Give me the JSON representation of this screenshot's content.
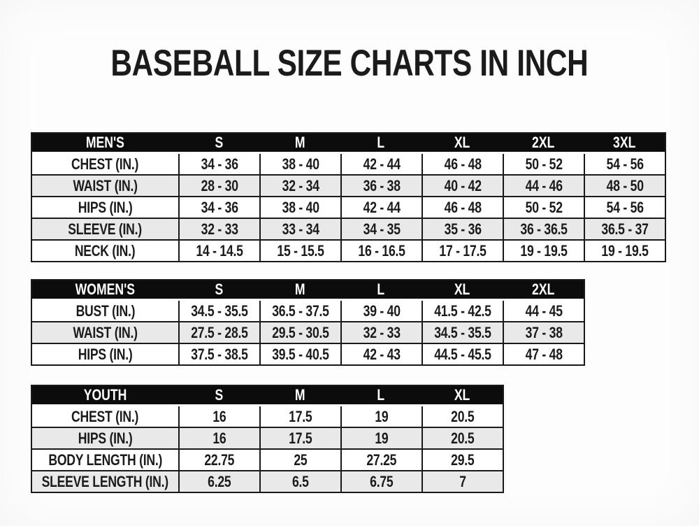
{
  "title": "BASEBALL SIZE CHARTS IN INCH",
  "colors": {
    "page_bg": "#fdfdfd",
    "header_bg": "#0c0c0c",
    "header_text": "#ffffff",
    "stripe": "#e9e9e9",
    "border": "#1a1a1a",
    "text": "#1b1b1b"
  },
  "chart_data": [
    {
      "type": "table",
      "name": "MEN'S",
      "columns": [
        "S",
        "M",
        "L",
        "XL",
        "2XL",
        "3XL"
      ],
      "rows": [
        {
          "label": "CHEST (IN.)",
          "values": [
            "34 - 36",
            "38 - 40",
            "42 - 44",
            "46 - 48",
            "50 - 52",
            "54 - 56"
          ]
        },
        {
          "label": "WAIST (IN.)",
          "values": [
            "28 - 30",
            "32 - 34",
            "36 - 38",
            "40 - 42",
            "44 - 46",
            "48 - 50"
          ]
        },
        {
          "label": "HIPS (IN.)",
          "values": [
            "34 - 36",
            "38 - 40",
            "42 - 44",
            "46 - 48",
            "50 - 52",
            "54 - 56"
          ]
        },
        {
          "label": "SLEEVE (IN.)",
          "values": [
            "32 - 33",
            "33 - 34",
            "34 - 35",
            "35 - 36",
            "36 - 36.5",
            "36.5 - 37"
          ]
        },
        {
          "label": "NECK (IN.)",
          "values": [
            "14 - 14.5",
            "15 - 15.5",
            "16 - 16.5",
            "17 - 17.5",
            "19 - 19.5",
            "19 - 19.5"
          ]
        }
      ]
    },
    {
      "type": "table",
      "name": "WOMEN'S",
      "columns": [
        "S",
        "M",
        "L",
        "XL",
        "2XL"
      ],
      "rows": [
        {
          "label": "BUST (IN.)",
          "values": [
            "34.5 - 35.5",
            "36.5 - 37.5",
            "39 - 40",
            "41.5 - 42.5",
            "44 - 45"
          ]
        },
        {
          "label": "WAIST (IN.)",
          "values": [
            "27.5 - 28.5",
            "29.5 - 30.5",
            "32 - 33",
            "34.5 - 35.5",
            "37 - 38"
          ]
        },
        {
          "label": "HIPS (IN.)",
          "values": [
            "37.5 - 38.5",
            "39.5 - 40.5",
            "42 - 43",
            "44.5 - 45.5",
            "47 - 48"
          ]
        }
      ]
    },
    {
      "type": "table",
      "name": "YOUTH",
      "columns": [
        "S",
        "M",
        "L",
        "XL"
      ],
      "rows": [
        {
          "label": "CHEST (IN.)",
          "values": [
            "16",
            "17.5",
            "19",
            "20.5"
          ]
        },
        {
          "label": "HIPS (IN.)",
          "values": [
            "16",
            "17.5",
            "19",
            "20.5"
          ]
        },
        {
          "label": "BODY LENGTH (IN.)",
          "values": [
            "22.75",
            "25",
            "27.25",
            "29.5"
          ]
        },
        {
          "label": "SLEEVE LENGTH (IN.)",
          "values": [
            "6.25",
            "6.5",
            "6.75",
            "7"
          ]
        }
      ]
    }
  ]
}
